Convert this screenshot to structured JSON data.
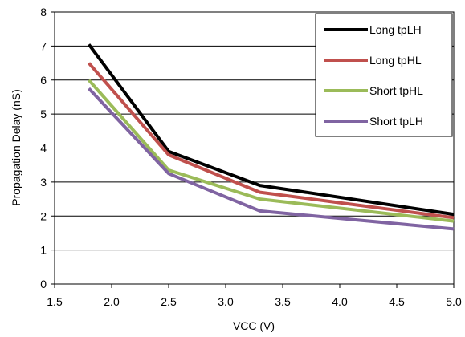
{
  "chart_data": {
    "type": "line",
    "title": "",
    "xlabel": "VCC (V)",
    "ylabel": "Propagation Delay  (nS)",
    "xlim": [
      1.5,
      5.0
    ],
    "ylim": [
      0,
      8
    ],
    "xticks": [
      "1.5",
      "2.0",
      "2.5",
      "3.0",
      "3.5",
      "4.0",
      "4.5",
      "5.0"
    ],
    "yticks": [
      "0",
      "1",
      "2",
      "3",
      "4",
      "5",
      "6",
      "7",
      "8"
    ],
    "grid": "horizontal",
    "legend_position": "top-right",
    "x": [
      1.8,
      2.5,
      3.3,
      5.0
    ],
    "series": [
      {
        "name": "Long tpLH",
        "color": "#000000",
        "values": [
          7.05,
          3.9,
          2.9,
          2.05
        ]
      },
      {
        "name": "Long tpHL",
        "color": "#c0504d",
        "values": [
          6.5,
          3.8,
          2.7,
          1.95
        ]
      },
      {
        "name": "Short tpHL",
        "color": "#9bbb59",
        "values": [
          6.0,
          3.35,
          2.5,
          1.85
        ]
      },
      {
        "name": "Short tpLH",
        "color": "#8064a2",
        "values": [
          5.75,
          3.25,
          2.15,
          1.62
        ]
      }
    ]
  }
}
